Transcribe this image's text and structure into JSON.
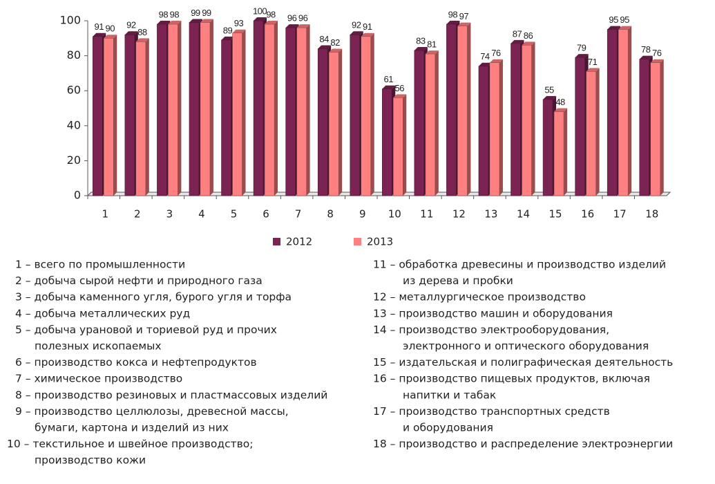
{
  "chart_data": {
    "type": "bar",
    "categories": [
      "1",
      "2",
      "3",
      "4",
      "5",
      "6",
      "7",
      "8",
      "9",
      "10",
      "11",
      "12",
      "13",
      "14",
      "15",
      "16",
      "17",
      "18"
    ],
    "series": [
      {
        "name": "2012",
        "color": "#7b2352",
        "values": [
          91,
          92,
          98,
          99,
          89,
          100,
          96,
          84,
          92,
          61,
          83,
          98,
          74,
          87,
          55,
          79,
          95,
          78
        ]
      },
      {
        "name": "2013",
        "color": "#ff8080",
        "values": [
          90,
          88,
          98,
          99,
          93,
          98,
          96,
          82,
          91,
          56,
          81,
          97,
          76,
          86,
          48,
          71,
          95,
          76
        ]
      }
    ],
    "ylim": [
      0,
      100
    ],
    "yticks": [
      0,
      20,
      40,
      60,
      80,
      100
    ],
    "legend": "bottom",
    "notes": [
      [
        "1 – всего по промышленности"
      ],
      [
        "2 – добыча сырой нефти и природного газа"
      ],
      [
        "3 – добыча каменного угля, бурого угля и торфа"
      ],
      [
        "4 – добыча металлических руд"
      ],
      [
        "5 – добыча урановой и ториевой руд и прочих",
        "полезных ископаемых"
      ],
      [
        "6 – производство кокса и нефтепродуктов"
      ],
      [
        "7 – химическое производство"
      ],
      [
        "8 – производство резиновых и пластмассовых изделий"
      ],
      [
        "9 – производство целлюлозы, древесной массы,",
        "бумаги, картона и изделий из них"
      ],
      [
        "10 – текстильное и швейное производство;",
        "производство кожи"
      ],
      [
        "11 – обработка древесины и производство изделий",
        "из дерева и пробки"
      ],
      [
        "12 – металлургическое производство"
      ],
      [
        "13 – производство машин и оборудования"
      ],
      [
        "14 – производство электрооборудования,",
        "электронного и оптического оборудования"
      ],
      [
        "15 – издательская и полиграфическая деятельность"
      ],
      [
        "16 – производство пищевых продуктов, включая",
        "напитки и табак"
      ],
      [
        "17 – производство транспортных средств",
        "и оборудования"
      ],
      [
        "18 – производство и распределение электроэнергии"
      ]
    ]
  }
}
